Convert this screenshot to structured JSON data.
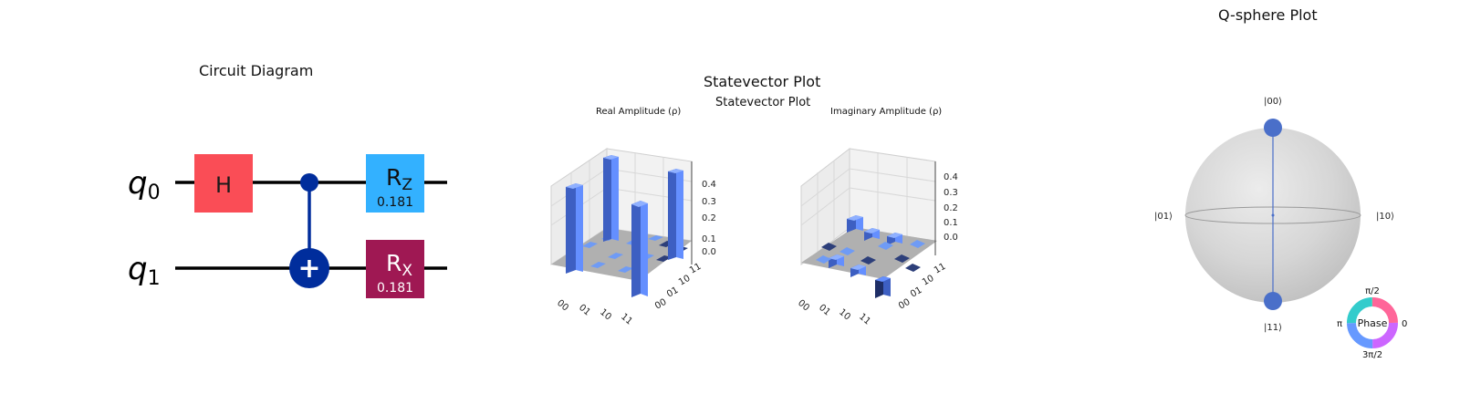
{
  "circuit": {
    "title": "Circuit Diagram",
    "qubits": [
      "q0",
      "q1"
    ],
    "qubit_letter": "q",
    "qubit_subscripts": [
      "0",
      "1"
    ],
    "gates": [
      {
        "name": "H",
        "label": "H",
        "qubit": 0,
        "color": "#fa4d56"
      },
      {
        "name": "Rz",
        "label": "R",
        "subscript": "Z",
        "param": "0.181",
        "qubit": 0,
        "color": "#33b1ff"
      },
      {
        "name": "Rx",
        "label": "R",
        "subscript": "X",
        "param": "0.181",
        "qubit": 1,
        "color": "#9f1853"
      }
    ],
    "cnot": {
      "control": 0,
      "target": 1,
      "color": "#002d9c",
      "symbol": "+"
    }
  },
  "statevector": {
    "title": "Statevector Plot",
    "subtitle": "Statevector Plot",
    "real": {
      "title": "Real Amplitude (ρ)",
      "z_ticks": [
        "0.0",
        "0.1",
        "0.2",
        "0.3",
        "0.4"
      ],
      "row_labels": [
        "00",
        "01",
        "10",
        "11"
      ],
      "col_labels": [
        "11",
        "10",
        "01",
        "00"
      ]
    },
    "imag": {
      "title": "Imaginary Amplitude (ρ)",
      "z_ticks": [
        "0.0",
        "0.1",
        "0.2",
        "0.3",
        "0.4"
      ],
      "row_labels": [
        "00",
        "01",
        "10",
        "11"
      ],
      "col_labels": [
        "11",
        "10",
        "01",
        "00"
      ]
    },
    "bar_color": "#648fff"
  },
  "qsphere": {
    "title": "Q-sphere Plot",
    "states": [
      "|00⟩",
      "|01⟩",
      "|10⟩",
      "|11⟩"
    ],
    "phase_legend": {
      "center": "Phase",
      "top": "π/2",
      "left": "π",
      "right": "0",
      "bottom": "3π/2"
    },
    "point_color": "#4a6fc9"
  }
}
